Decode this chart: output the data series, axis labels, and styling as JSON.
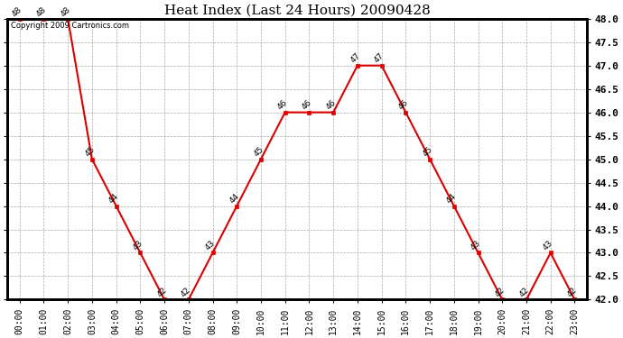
{
  "title": "Heat Index (Last 24 Hours) 20090428",
  "copyright_text": "Copyright 2009 Cartronics.com",
  "x_labels": [
    "00:00",
    "01:00",
    "02:00",
    "03:00",
    "04:00",
    "05:00",
    "06:00",
    "07:00",
    "08:00",
    "09:00",
    "10:00",
    "11:00",
    "12:00",
    "13:00",
    "14:00",
    "15:00",
    "16:00",
    "17:00",
    "18:00",
    "19:00",
    "20:00",
    "21:00",
    "22:00",
    "23:00"
  ],
  "y_values": [
    48,
    48,
    48,
    45,
    44,
    43,
    42,
    42,
    43,
    44,
    45,
    46,
    46,
    46,
    47,
    47,
    46,
    45,
    44,
    43,
    42,
    42,
    43,
    42
  ],
  "ylim_min": 42.0,
  "ylim_max": 48.0,
  "ytick_step": 0.5,
  "line_color": "#dd0000",
  "marker_color": "#dd0000",
  "marker_style": "s",
  "marker_size": 3,
  "background_color": "#ffffff",
  "grid_color": "#aaaaaa",
  "title_fontsize": 11,
  "xlabel_fontsize": 7,
  "ylabel_fontsize": 8,
  "annotation_fontsize": 6.5,
  "copyright_fontsize": 6,
  "fig_width": 6.9,
  "fig_height": 3.75,
  "dpi": 100
}
